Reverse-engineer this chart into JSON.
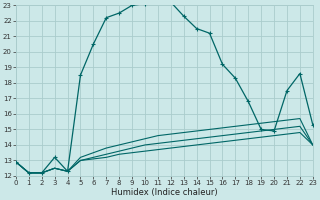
{
  "xlabel": "Humidex (Indice chaleur)",
  "background_color": "#cce8e8",
  "grid_color": "#aacccc",
  "line_color": "#006666",
  "xlim": [
    0,
    23
  ],
  "ylim": [
    12,
    23
  ],
  "xticks": [
    0,
    1,
    2,
    3,
    4,
    5,
    6,
    7,
    8,
    9,
    10,
    11,
    12,
    13,
    14,
    15,
    16,
    17,
    18,
    19,
    20,
    21,
    22,
    23
  ],
  "yticks": [
    12,
    13,
    14,
    15,
    16,
    17,
    18,
    19,
    20,
    21,
    22,
    23
  ],
  "main_x": [
    0,
    1,
    2,
    3,
    4,
    5,
    6,
    7,
    8,
    9,
    10,
    11,
    12,
    13,
    14,
    15,
    16,
    17,
    18,
    19,
    20,
    21,
    22,
    23
  ],
  "main_y": [
    12.9,
    12.2,
    12.2,
    13.2,
    12.3,
    18.5,
    20.5,
    22.2,
    22.5,
    23.0,
    23.1,
    23.2,
    23.2,
    22.3,
    21.5,
    21.2,
    19.2,
    18.3,
    16.8,
    15.0,
    14.9,
    17.5,
    18.6,
    15.3
  ],
  "flat1_x": [
    0,
    1,
    2,
    3,
    4,
    5,
    6,
    7,
    8,
    9,
    10,
    11,
    12,
    13,
    14,
    15,
    16,
    17,
    18,
    19,
    20,
    21,
    22,
    23
  ],
  "flat1_y": [
    12.9,
    12.2,
    12.2,
    12.5,
    12.3,
    13.0,
    13.1,
    13.2,
    13.4,
    13.5,
    13.6,
    13.7,
    13.8,
    13.9,
    14.0,
    14.1,
    14.2,
    14.3,
    14.4,
    14.5,
    14.6,
    14.7,
    14.8,
    14.0
  ],
  "flat2_x": [
    0,
    1,
    2,
    3,
    4,
    5,
    6,
    7,
    8,
    9,
    10,
    11,
    12,
    13,
    14,
    15,
    16,
    17,
    18,
    19,
    20,
    21,
    22,
    23
  ],
  "flat2_y": [
    12.9,
    12.2,
    12.2,
    12.5,
    12.3,
    13.0,
    13.2,
    13.4,
    13.6,
    13.8,
    14.0,
    14.1,
    14.2,
    14.3,
    14.4,
    14.5,
    14.6,
    14.7,
    14.8,
    14.9,
    15.0,
    15.1,
    15.2,
    14.0
  ],
  "flat3_x": [
    0,
    1,
    2,
    3,
    4,
    5,
    6,
    7,
    8,
    9,
    10,
    11,
    12,
    13,
    14,
    15,
    16,
    17,
    18,
    19,
    20,
    21,
    22,
    23
  ],
  "flat3_y": [
    12.9,
    12.2,
    12.2,
    12.5,
    12.3,
    13.2,
    13.5,
    13.8,
    14.0,
    14.2,
    14.4,
    14.6,
    14.7,
    14.8,
    14.9,
    15.0,
    15.1,
    15.2,
    15.3,
    15.4,
    15.5,
    15.6,
    15.7,
    14.0
  ]
}
